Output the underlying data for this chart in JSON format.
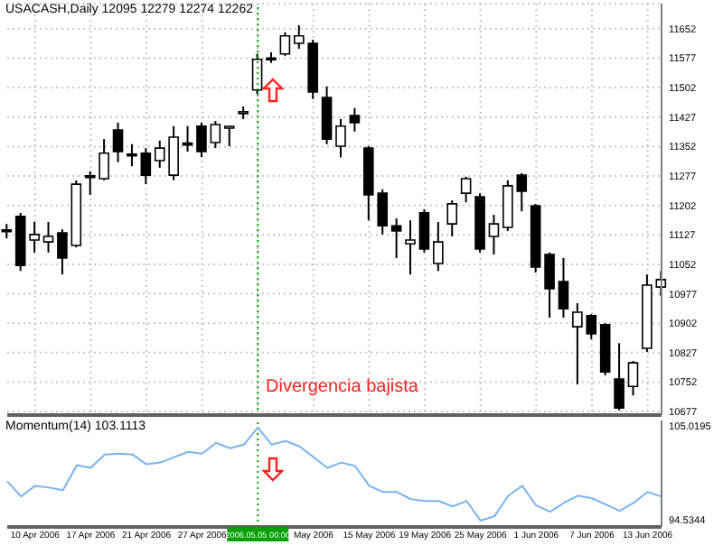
{
  "chart_data": [
    {
      "type": "candlestick",
      "title": "USACASH,Daily 12095 12279 12274 12262",
      "categories": [
        null,
        null,
        "10 Apr 2006",
        null,
        null,
        null,
        "17 Apr 2006",
        null,
        null,
        null,
        "21 Apr 2006",
        null,
        null,
        null,
        "27 Apr 2006",
        null,
        null,
        null,
        "2006.05.05 00:00",
        null,
        null,
        null,
        "May 2006",
        null,
        null,
        null,
        "15 May 2006",
        null,
        null,
        null,
        "19 May 2006",
        null,
        null,
        null,
        "25 May 2006",
        null,
        null,
        null,
        "1 Jun 2006",
        null,
        null,
        null,
        "7 Jun 2006",
        null,
        null,
        null,
        "13 Jun 2006",
        null
      ],
      "ohlc": [
        [
          11137,
          11155,
          11118,
          11135
        ],
        [
          11174,
          11183,
          11035,
          11049
        ],
        [
          11114,
          11160,
          11082,
          11128
        ],
        [
          11109,
          11160,
          11082,
          11123
        ],
        [
          11132,
          11141,
          11026,
          11068
        ],
        [
          11100,
          11266,
          11095,
          11256
        ],
        [
          11275,
          11289,
          11229,
          11273
        ],
        [
          11270,
          11371,
          11266,
          11335
        ],
        [
          11394,
          11413,
          11312,
          11339
        ],
        [
          11330,
          11358,
          11302,
          11328
        ],
        [
          11335,
          11348,
          11256,
          11279
        ],
        [
          11316,
          11367,
          11298,
          11348
        ],
        [
          11279,
          11404,
          11266,
          11376
        ],
        [
          11358,
          11404,
          11339,
          11356
        ],
        [
          11404,
          11413,
          11325,
          11339
        ],
        [
          11362,
          11417,
          11348,
          11408
        ],
        [
          11399,
          11404,
          11353,
          11401
        ],
        [
          11436,
          11454,
          11422,
          11437
        ],
        [
          11496,
          11588,
          11486,
          11574
        ],
        [
          11574,
          11592,
          11565,
          11573
        ],
        [
          11588,
          11643,
          11583,
          11634
        ],
        [
          11615,
          11661,
          11601,
          11634
        ],
        [
          11615,
          11624,
          11473,
          11491
        ],
        [
          11477,
          11505,
          11358,
          11371
        ],
        [
          11353,
          11422,
          11325,
          11404
        ],
        [
          11431,
          11450,
          11390,
          11413
        ],
        [
          11348,
          11353,
          11164,
          11229
        ],
        [
          11233,
          11243,
          11128,
          11150
        ],
        [
          11150,
          11169,
          11068,
          11137
        ],
        [
          11104,
          11164,
          11026,
          11114
        ],
        [
          11183,
          11192,
          11082,
          11091
        ],
        [
          11054,
          11160,
          11035,
          11109
        ],
        [
          11155,
          11215,
          11123,
          11206
        ],
        [
          11233,
          11275,
          11210,
          11270
        ],
        [
          11224,
          11233,
          11082,
          11091
        ],
        [
          11123,
          11178,
          11077,
          11155
        ],
        [
          11146,
          11266,
          11137,
          11252
        ],
        [
          11279,
          11284,
          11187,
          11238
        ],
        [
          11201,
          11206,
          11031,
          11045
        ],
        [
          11077,
          11082,
          10916,
          10990
        ],
        [
          11008,
          11068,
          10916,
          10939
        ],
        [
          10893,
          10953,
          10746,
          10930
        ],
        [
          10921,
          10925,
          10861,
          10875
        ],
        [
          10898,
          10902,
          10769,
          10778
        ],
        [
          10760,
          10851,
          10680,
          10686
        ],
        [
          10741,
          10806,
          10718,
          10801
        ],
        [
          10838,
          11026,
          10829,
          10999
        ],
        [
          10994,
          11035,
          10971,
          11013
        ]
      ],
      "ylim": [
        10668,
        11716
      ],
      "yticks": [
        11652,
        11577,
        11502,
        11427,
        11352,
        11277,
        11202,
        11127,
        11052,
        10977,
        10902,
        10827,
        10752,
        10677
      ],
      "grid": true,
      "tick_labels": "y",
      "ref_lines": [
        {
          "axis": "x",
          "value": "2006.05.05 00:00",
          "color": "#00a000",
          "line_style": "dotted"
        }
      ],
      "annotations": [
        "Divergencia bajista"
      ]
    },
    {
      "type": "line",
      "title": "Momentum(14) 103.1113",
      "categories": [
        null,
        null,
        "10 Apr 2006",
        null,
        null,
        null,
        "17 Apr 2006",
        null,
        null,
        null,
        "21 Apr 2006",
        null,
        null,
        null,
        "27 Apr 2006",
        null,
        null,
        null,
        "2006.05.05 00:00",
        null,
        null,
        null,
        "May 2006",
        null,
        null,
        null,
        "15 May 2006",
        null,
        null,
        null,
        "19 May 2006",
        null,
        null,
        null,
        "25 May 2006",
        null,
        null,
        null,
        "1 Jun 2006",
        null,
        null,
        null,
        "7 Jun 2006",
        null,
        null,
        null,
        "13 Jun 2006",
        null
      ],
      "series": [
        {
          "color": "#7ab4f2",
          "values": [
            98.8,
            97.1,
            98.3,
            98.1,
            97.8,
            100.6,
            100.3,
            101.8,
            101.9,
            101.8,
            100.7,
            100.9,
            101.5,
            102.1,
            101.9,
            103.1,
            102.5,
            102.9,
            104.8,
            102.9,
            103.3,
            102.7,
            101.5,
            100.3,
            100.9,
            100.5,
            98.3,
            97.6,
            97.6,
            96.8,
            96.6,
            96.6,
            96,
            96.6,
            94.4,
            94.9,
            97.2,
            98.3,
            96.1,
            95.4,
            96.4,
            97.2,
            96.9,
            96.2,
            95.5,
            96.4,
            97.6,
            97.1
          ]
        }
      ],
      "ylim": [
        93.7,
        105.6
      ],
      "yticks": [
        105.0195,
        94.5344
      ],
      "ref_lines": [
        {
          "axis": "x",
          "value": "2006.05.05 00:00",
          "color": "#00a000",
          "line_style": "dotted"
        }
      ]
    }
  ]
}
